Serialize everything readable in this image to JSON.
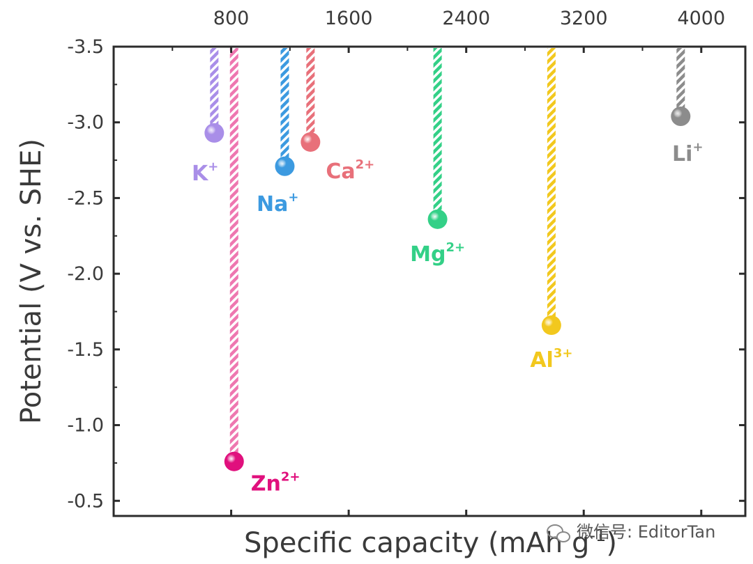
{
  "chart_data": {
    "type": "scatter",
    "title": "",
    "xlabel": "Specific capacity (mAh g",
    "xlabel_sup": "-1",
    "xlabel_tail": ")",
    "ylabel": "Potential (V vs. SHE)",
    "xlim": [
      0,
      4300
    ],
    "xticks": [
      800,
      1600,
      2400,
      3200,
      4000
    ],
    "xtick_labels": [
      "800",
      "1600",
      "2400",
      "3200",
      "4000"
    ],
    "ylim": [
      -0.4,
      -3.5
    ],
    "yticks": [
      -3.5,
      -3.0,
      -2.5,
      -2.0,
      -1.5,
      -1.0,
      -0.5
    ],
    "ytick_labels": [
      "-3.5",
      "-3.0",
      "-2.5",
      "-2.0",
      "-1.5",
      "-1.0",
      "-0.5"
    ],
    "grid": false,
    "legend": "none",
    "points": [
      {
        "ion": "K",
        "charge": "+",
        "capacity": 685,
        "potential": -2.93,
        "color": "#a98ee8",
        "label_pos": "below-left"
      },
      {
        "ion": "Zn",
        "charge": "2+",
        "capacity": 820,
        "potential": -0.76,
        "color": "#e0107d",
        "stripe": "#ee77b0",
        "label_pos": "below-right"
      },
      {
        "ion": "Na",
        "charge": "+",
        "capacity": 1165,
        "potential": -2.71,
        "color": "#3c9ae0",
        "label_pos": "below-left"
      },
      {
        "ion": "Ca",
        "charge": "2+",
        "capacity": 1340,
        "potential": -2.87,
        "color": "#e8707a",
        "label_pos": "below-right"
      },
      {
        "ion": "Mg",
        "charge": "2+",
        "capacity": 2205,
        "potential": -2.36,
        "color": "#33d087",
        "label_pos": "below"
      },
      {
        "ion": "Al",
        "charge": "3+",
        "capacity": 2980,
        "potential": -1.66,
        "color": "#f2c81e",
        "label_pos": "below"
      },
      {
        "ion": "Li",
        "charge": "+",
        "capacity": 3860,
        "potential": -3.04,
        "color": "#8c8c8c",
        "label_pos": "below"
      }
    ]
  },
  "watermark": {
    "icon": "wechat-icon",
    "text": "微信号: EditorTan"
  }
}
